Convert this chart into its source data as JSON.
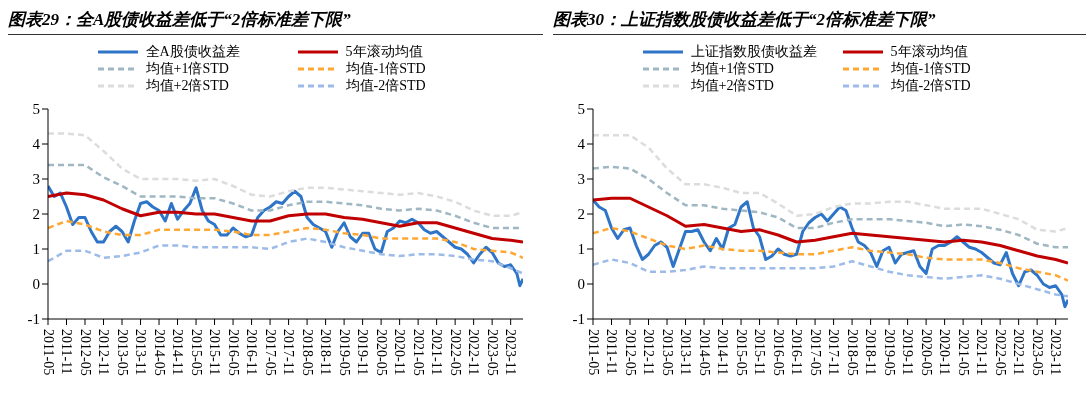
{
  "chart_data": [
    {
      "type": "line",
      "title": "图表29：全A股债收益差低于“2倍标准差下限”",
      "legend": "top",
      "xlim": [
        "2011-05",
        "2024-03"
      ],
      "ylim": [
        -1,
        5
      ],
      "yticks": [
        -1,
        0,
        1,
        2,
        3,
        4,
        5
      ],
      "xticks": [
        "2011-05",
        "2011-11",
        "2012-05",
        "2012-11",
        "2013-05",
        "2013-11",
        "2014-05",
        "2014-11",
        "2015-05",
        "2015-11",
        "2016-05",
        "2016-11",
        "2017-05",
        "2017-11",
        "2018-05",
        "2018-11",
        "2019-05",
        "2019-11",
        "2020-05",
        "2020-11",
        "2021-05",
        "2021-11",
        "2022-05",
        "2022-11",
        "2023-05",
        "2023-11"
      ],
      "x": [
        "2011-05",
        "2011-11",
        "2012-05",
        "2012-11",
        "2013-05",
        "2013-11",
        "2014-05",
        "2014-11",
        "2015-05",
        "2015-11",
        "2016-05",
        "2016-11",
        "2017-05",
        "2017-11",
        "2018-05",
        "2018-11",
        "2019-05",
        "2019-11",
        "2020-05",
        "2020-11",
        "2021-05",
        "2021-11",
        "2022-05",
        "2022-11",
        "2023-05",
        "2023-11",
        "2024-03"
      ],
      "series": [
        {
          "name": "全A股债收益差",
          "color": "#2e75c8",
          "line_style": "solid",
          "x": [
            "2011-05",
            "2011-07",
            "2011-09",
            "2011-11",
            "2012-01",
            "2012-03",
            "2012-05",
            "2012-07",
            "2012-09",
            "2012-11",
            "2013-01",
            "2013-03",
            "2013-05",
            "2013-07",
            "2013-09",
            "2013-11",
            "2014-01",
            "2014-03",
            "2014-05",
            "2014-07",
            "2014-09",
            "2014-11",
            "2015-01",
            "2015-03",
            "2015-05",
            "2015-07",
            "2015-09",
            "2015-11",
            "2016-01",
            "2016-03",
            "2016-05",
            "2016-07",
            "2016-09",
            "2016-11",
            "2017-01",
            "2017-03",
            "2017-05",
            "2017-07",
            "2017-09",
            "2017-11",
            "2018-01",
            "2018-03",
            "2018-05",
            "2018-07",
            "2018-09",
            "2018-11",
            "2019-01",
            "2019-03",
            "2019-05",
            "2019-07",
            "2019-09",
            "2019-11",
            "2020-01",
            "2020-03",
            "2020-05",
            "2020-07",
            "2020-09",
            "2020-11",
            "2021-01",
            "2021-03",
            "2021-05",
            "2021-07",
            "2021-09",
            "2021-11",
            "2022-01",
            "2022-03",
            "2022-05",
            "2022-07",
            "2022-09",
            "2022-11",
            "2023-01",
            "2023-03",
            "2023-05",
            "2023-07",
            "2023-09",
            "2023-11",
            "2024-01",
            "2024-02",
            "2024-03"
          ],
          "values": [
            2.8,
            2.5,
            2.6,
            2.2,
            1.7,
            1.9,
            1.9,
            1.5,
            1.2,
            1.2,
            1.5,
            1.65,
            1.5,
            1.2,
            1.8,
            2.3,
            2.35,
            2.2,
            2.1,
            1.8,
            2.3,
            1.85,
            2.1,
            2.3,
            2.75,
            2.1,
            1.8,
            1.7,
            1.4,
            1.4,
            1.6,
            1.45,
            1.35,
            1.4,
            1.9,
            2.1,
            2.2,
            2.35,
            2.3,
            2.5,
            2.65,
            2.5,
            1.9,
            1.7,
            1.6,
            1.5,
            1.05,
            1.5,
            1.75,
            1.35,
            1.2,
            1.45,
            1.45,
            1.0,
            0.9,
            1.5,
            1.6,
            1.8,
            1.75,
            1.85,
            1.75,
            1.55,
            1.45,
            1.5,
            1.35,
            1.2,
            1.05,
            1.0,
            0.85,
            0.6,
            0.85,
            1.05,
            0.9,
            0.6,
            0.5,
            0.55,
            0.3,
            -0.05,
            0.15
          ]
        },
        {
          "name": "5年滚动均值",
          "color": "#c00000",
          "line_style": "solid",
          "values": [
            2.5,
            2.6,
            2.55,
            2.4,
            2.15,
            1.95,
            2.05,
            2.05,
            2.0,
            2.0,
            1.9,
            1.8,
            1.8,
            1.95,
            2.0,
            2.0,
            1.9,
            1.85,
            1.75,
            1.65,
            1.75,
            1.75,
            1.6,
            1.45,
            1.3,
            1.25,
            1.2
          ]
        },
        {
          "name": "均值+1倍STD",
          "color": "#9fb6c3",
          "line_style": "dashed",
          "values": [
            3.4,
            3.4,
            3.4,
            3.05,
            2.8,
            2.5,
            2.5,
            2.5,
            2.45,
            2.45,
            2.3,
            2.1,
            2.1,
            2.25,
            2.35,
            2.35,
            2.3,
            2.25,
            2.15,
            2.1,
            2.15,
            2.1,
            1.95,
            1.75,
            1.6,
            1.6,
            1.6
          ]
        },
        {
          "name": "均值-1倍STD",
          "color": "#ffa733",
          "line_style": "dashed",
          "values": [
            1.6,
            1.8,
            1.7,
            1.5,
            1.4,
            1.4,
            1.55,
            1.55,
            1.55,
            1.55,
            1.5,
            1.4,
            1.4,
            1.5,
            1.6,
            1.55,
            1.45,
            1.4,
            1.3,
            1.3,
            1.3,
            1.3,
            1.2,
            1.0,
            0.95,
            0.9,
            0.75
          ]
        },
        {
          "name": "均值+2倍STD",
          "color": "#dcdcdc",
          "line_style": "dashed",
          "values": [
            4.3,
            4.3,
            4.25,
            3.8,
            3.3,
            3.0,
            3.0,
            3.0,
            2.95,
            3.0,
            2.8,
            2.55,
            2.5,
            2.65,
            2.75,
            2.75,
            2.7,
            2.65,
            2.6,
            2.55,
            2.6,
            2.5,
            2.35,
            2.1,
            1.95,
            1.95,
            2.05
          ]
        },
        {
          "name": "均值-2倍STD",
          "color": "#9dbbe8",
          "line_style": "dashed",
          "values": [
            0.65,
            0.95,
            0.95,
            0.75,
            0.8,
            0.9,
            1.1,
            1.1,
            1.05,
            1.05,
            1.05,
            1.05,
            1.0,
            1.2,
            1.3,
            1.2,
            1.05,
            0.95,
            0.85,
            0.8,
            0.85,
            0.85,
            0.8,
            0.7,
            0.65,
            0.45,
            0.3
          ]
        }
      ]
    },
    {
      "type": "line",
      "title": "图表30：上证指数股债收益差低于“2倍标准差下限”",
      "legend": "top",
      "xlim": [
        "2011-05",
        "2024-03"
      ],
      "ylim": [
        -1,
        5
      ],
      "yticks": [
        -1,
        0,
        1,
        2,
        3,
        4,
        5
      ],
      "xticks": [
        "2011-05",
        "2011-11",
        "2012-05",
        "2012-11",
        "2013-05",
        "2013-11",
        "2014-05",
        "2014-11",
        "2015-05",
        "2015-11",
        "2016-05",
        "2016-11",
        "2017-05",
        "2017-11",
        "2018-05",
        "2018-11",
        "2019-05",
        "2019-11",
        "2020-05",
        "2020-11",
        "2021-05",
        "2021-11",
        "2022-05",
        "2022-11",
        "2023-05",
        "2023-11"
      ],
      "x": [
        "2011-05",
        "2011-11",
        "2012-05",
        "2012-11",
        "2013-05",
        "2013-11",
        "2014-05",
        "2014-11",
        "2015-05",
        "2015-11",
        "2016-05",
        "2016-11",
        "2017-05",
        "2017-11",
        "2018-05",
        "2018-11",
        "2019-05",
        "2019-11",
        "2020-05",
        "2020-11",
        "2021-05",
        "2021-11",
        "2022-05",
        "2022-11",
        "2023-05",
        "2023-11",
        "2024-03"
      ],
      "series": [
        {
          "name": "上证指数股债收益差",
          "color": "#2e75c8",
          "line_style": "solid",
          "x": [
            "2011-05",
            "2011-07",
            "2011-09",
            "2011-11",
            "2012-01",
            "2012-03",
            "2012-05",
            "2012-07",
            "2012-09",
            "2012-11",
            "2013-01",
            "2013-03",
            "2013-05",
            "2013-07",
            "2013-09",
            "2013-11",
            "2014-01",
            "2014-03",
            "2014-05",
            "2014-07",
            "2014-09",
            "2014-11",
            "2015-01",
            "2015-03",
            "2015-05",
            "2015-07",
            "2015-09",
            "2015-11",
            "2016-01",
            "2016-03",
            "2016-05",
            "2016-07",
            "2016-09",
            "2016-11",
            "2017-01",
            "2017-03",
            "2017-05",
            "2017-07",
            "2017-09",
            "2017-11",
            "2018-01",
            "2018-03",
            "2018-05",
            "2018-07",
            "2018-09",
            "2018-11",
            "2019-01",
            "2019-03",
            "2019-05",
            "2019-07",
            "2019-09",
            "2019-11",
            "2020-01",
            "2020-03",
            "2020-05",
            "2020-07",
            "2020-09",
            "2020-11",
            "2021-01",
            "2021-03",
            "2021-05",
            "2021-07",
            "2021-09",
            "2021-11",
            "2022-01",
            "2022-03",
            "2022-05",
            "2022-07",
            "2022-09",
            "2022-11",
            "2023-01",
            "2023-03",
            "2023-05",
            "2023-07",
            "2023-09",
            "2023-11",
            "2024-01",
            "2024-02",
            "2024-03"
          ],
          "values": [
            2.4,
            2.2,
            2.1,
            1.6,
            1.3,
            1.55,
            1.6,
            1.1,
            0.7,
            0.85,
            1.1,
            1.2,
            1.05,
            0.5,
            1.0,
            1.5,
            1.5,
            1.55,
            1.2,
            0.95,
            1.3,
            1.0,
            1.6,
            1.7,
            2.2,
            2.35,
            1.6,
            1.35,
            0.7,
            0.8,
            1.0,
            0.85,
            0.8,
            0.85,
            1.5,
            1.75,
            1.9,
            2.0,
            1.8,
            2.0,
            2.2,
            2.1,
            1.6,
            1.2,
            1.1,
            0.9,
            0.5,
            0.95,
            1.05,
            0.6,
            0.85,
            0.9,
            0.95,
            0.5,
            0.3,
            1.0,
            1.1,
            1.1,
            1.2,
            1.35,
            1.2,
            1.05,
            1.0,
            0.9,
            0.75,
            0.6,
            0.55,
            0.9,
            0.3,
            -0.05,
            0.35,
            0.4,
            0.25,
            0.0,
            -0.1,
            -0.05,
            -0.3,
            -0.65,
            -0.45
          ]
        },
        {
          "name": "5年滚动均值",
          "color": "#c00000",
          "line_style": "solid",
          "values": [
            2.4,
            2.45,
            2.45,
            2.2,
            1.95,
            1.65,
            1.7,
            1.6,
            1.5,
            1.55,
            1.4,
            1.2,
            1.25,
            1.35,
            1.45,
            1.4,
            1.35,
            1.3,
            1.25,
            1.2,
            1.25,
            1.2,
            1.1,
            0.95,
            0.8,
            0.7,
            0.6
          ]
        },
        {
          "name": "均值+1倍STD",
          "color": "#9fb6c3",
          "line_style": "dashed",
          "values": [
            3.3,
            3.35,
            3.3,
            3.0,
            2.6,
            2.25,
            2.25,
            2.15,
            2.1,
            2.05,
            1.9,
            1.6,
            1.6,
            1.75,
            1.85,
            1.85,
            1.85,
            1.8,
            1.75,
            1.65,
            1.7,
            1.65,
            1.55,
            1.4,
            1.15,
            1.05,
            1.05
          ]
        },
        {
          "name": "均值-1倍STD",
          "color": "#ffa733",
          "line_style": "dashed",
          "values": [
            1.45,
            1.6,
            1.5,
            1.3,
            1.1,
            1.0,
            1.1,
            1.0,
            0.95,
            0.95,
            0.9,
            0.85,
            0.85,
            0.95,
            1.05,
            0.95,
            0.9,
            0.85,
            0.75,
            0.7,
            0.7,
            0.7,
            0.6,
            0.45,
            0.35,
            0.25,
            0.1
          ]
        },
        {
          "name": "均值+2倍STD",
          "color": "#dcdcdc",
          "line_style": "dashed",
          "values": [
            4.25,
            4.25,
            4.25,
            3.9,
            3.3,
            2.85,
            2.85,
            2.75,
            2.6,
            2.6,
            2.3,
            1.95,
            2.0,
            2.2,
            2.3,
            2.3,
            2.35,
            2.35,
            2.25,
            2.15,
            2.15,
            2.15,
            2.0,
            1.85,
            1.55,
            1.5,
            1.6
          ]
        },
        {
          "name": "均值-2倍STD",
          "color": "#9dbbe8",
          "line_style": "dashed",
          "values": [
            0.55,
            0.7,
            0.6,
            0.35,
            0.35,
            0.4,
            0.5,
            0.45,
            0.45,
            0.45,
            0.45,
            0.45,
            0.45,
            0.5,
            0.65,
            0.5,
            0.35,
            0.25,
            0.2,
            0.15,
            0.2,
            0.25,
            0.15,
            0.0,
            -0.15,
            -0.3,
            -0.35
          ]
        }
      ]
    }
  ]
}
